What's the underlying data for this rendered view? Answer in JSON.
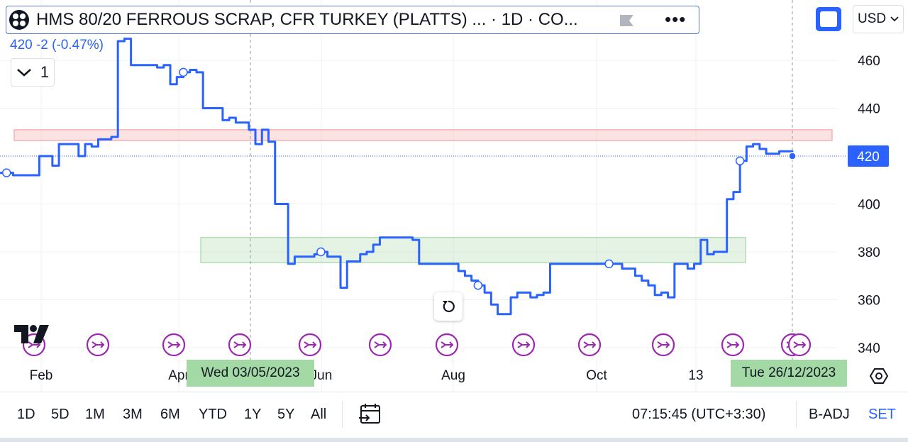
{
  "header": {
    "title": "HMS 80/20 FERROUS SCRAP, CFR TURKEY (PLATTS) ... · 1D · CO...",
    "price_line": "420  -2 (-0.47%)",
    "collapse_count": "1",
    "currency": "USD"
  },
  "chart_data": {
    "type": "line",
    "x_ticks": [
      "Feb",
      "Apr",
      "Jun",
      "Aug",
      "Oct",
      "13"
    ],
    "y_ticks": [
      460,
      440,
      420,
      400,
      380,
      360,
      340
    ],
    "ylim": [
      334,
      470
    ],
    "last_price_label": "420",
    "crosshair_dates": [
      "Wed 03/05/2023",
      "Tue 26/12/2023"
    ],
    "zones": [
      {
        "kind": "resistance",
        "from": 426.5,
        "to": 431,
        "color": "#f5a3a3"
      },
      {
        "kind": "support",
        "from": 375.5,
        "to": 386,
        "color": "#a5d6a7"
      }
    ],
    "series": [
      {
        "color": "#2962ff",
        "values": [
          413,
          413,
          412,
          412,
          412,
          412,
          420,
          420,
          416,
          425,
          425,
          425,
          420,
          425,
          424,
          427,
          427,
          428,
          468,
          469,
          458,
          458,
          458,
          458,
          457,
          458,
          450,
          453,
          455,
          456,
          455,
          440,
          440,
          440,
          435,
          436,
          434,
          434,
          431,
          425,
          431,
          426,
          400,
          400,
          375,
          378,
          378,
          378,
          379,
          380,
          378,
          378,
          365,
          376,
          376,
          379,
          380,
          383,
          386,
          386,
          386,
          386,
          386,
          385,
          375,
          375,
          375,
          375,
          375,
          375,
          372,
          370,
          368,
          366,
          363,
          358,
          354,
          354,
          361,
          363,
          363,
          361,
          362,
          363,
          375,
          375,
          375,
          375,
          375,
          375,
          375,
          375,
          375,
          375,
          375,
          373,
          373,
          370,
          368,
          366,
          362,
          363,
          361,
          375,
          375,
          373,
          375,
          385,
          379,
          380,
          380,
          402,
          405,
          418,
          424,
          425,
          423,
          421,
          421,
          422,
          422,
          420
        ]
      }
    ]
  },
  "bottom": {
    "ranges": [
      "1D",
      "5D",
      "1M",
      "3M",
      "6M",
      "YTD",
      "1Y",
      "5Y",
      "All"
    ],
    "time": "07:15:45 (UTC+3:30)",
    "adjust": "B-ADJ",
    "set": "SET"
  },
  "colors": {
    "line": "#2962ff",
    "event_marker": "#9c27b0",
    "date_badge": "#a3d9a5"
  }
}
